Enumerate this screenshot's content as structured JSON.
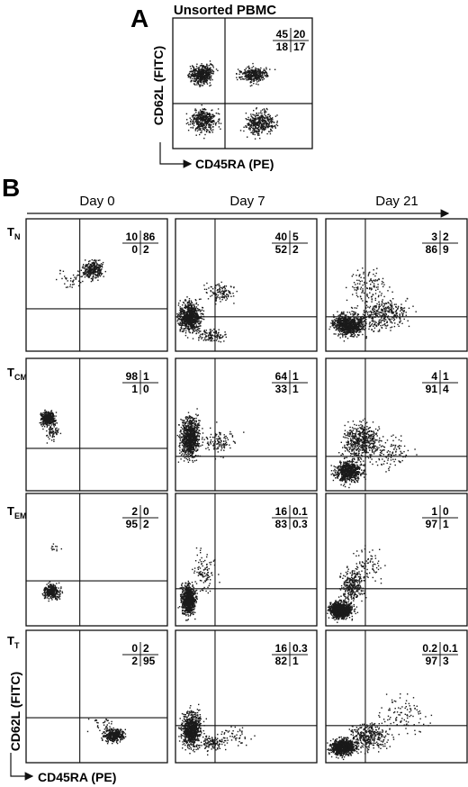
{
  "panel_a": {
    "letter": "A",
    "title": "Unsorted PBMC",
    "ylabel": "CD62L (FITC)",
    "xlabel": "CD45RA (PE)",
    "quadrants": [
      "45",
      "20",
      "18",
      "17"
    ]
  },
  "panel_b": {
    "letter": "B",
    "days": [
      "Day 0",
      "Day 7",
      "Day 21"
    ],
    "rows": [
      {
        "label_main": "T",
        "label_sub": "N",
        "quadrants": [
          [
            "10",
            "86",
            "0",
            "2"
          ],
          [
            "40",
            "5",
            "52",
            "2"
          ],
          [
            "3",
            "2",
            "86",
            "9"
          ]
        ]
      },
      {
        "label_main": "T",
        "label_sub": "CM",
        "quadrants": [
          [
            "98",
            "1",
            "1",
            "0"
          ],
          [
            "64",
            "1",
            "33",
            "1"
          ],
          [
            "4",
            "1",
            "91",
            "4"
          ]
        ]
      },
      {
        "label_main": "T",
        "label_sub": "EM",
        "quadrants": [
          [
            "2",
            "0",
            "95",
            "2"
          ],
          [
            "16",
            "0.1",
            "83",
            "0.3"
          ],
          [
            "1",
            "0",
            "97",
            "1"
          ]
        ]
      },
      {
        "label_main": "T",
        "label_sub": "T",
        "quadrants": [
          [
            "0",
            "2",
            "2",
            "95"
          ],
          [
            "16",
            "0.3",
            "82",
            "1"
          ],
          [
            "0.2",
            "0.1",
            "97",
            "3"
          ]
        ]
      }
    ],
    "ylabel": "CD62L (FITC)",
    "xlabel": "CD45RA (PE)"
  },
  "colors": {
    "ink": "#111111",
    "dots": "#1a1a1a"
  }
}
